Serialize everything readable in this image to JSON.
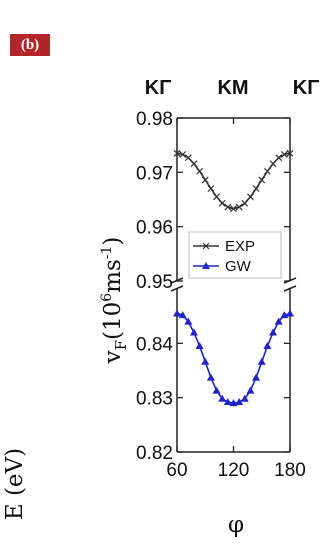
{
  "panel_label": "(b)",
  "chart_data": {
    "type": "line",
    "x": [
      60,
      66,
      72,
      78,
      84,
      90,
      96,
      102,
      108,
      114,
      120,
      126,
      132,
      138,
      144,
      150,
      156,
      162,
      168,
      174,
      180
    ],
    "top_axis_labels": [
      "KΓ",
      "KM",
      "KΓ"
    ],
    "xticks": [
      "60",
      "120",
      "180"
    ],
    "xlabel": "φ",
    "ylabel_main": "v",
    "ylabel_sub": "F",
    "ylabel_rest": "(10",
    "ylabel_sup1": "6",
    "ylabel_unit": "ms",
    "ylabel_sup2": "-1",
    "ylabel_close": ")",
    "left_edge_label": "E (eV)",
    "upper_panel": {
      "ylim": [
        0.95,
        0.98
      ],
      "yticks": [
        "0.98",
        "0.97",
        "0.96",
        "0.95"
      ]
    },
    "lower_panel": {
      "ylim": [
        0.82,
        0.85
      ],
      "yticks": [
        "0.84",
        "0.83",
        "0.82"
      ]
    },
    "series": [
      {
        "name": "EXP",
        "panel": "upper",
        "color": "#333333",
        "marker": "cross",
        "values": [
          0.9735,
          0.9733,
          0.9727,
          0.9716,
          0.9702,
          0.9686,
          0.967,
          0.9655,
          0.9643,
          0.9636,
          0.9633,
          0.9636,
          0.9643,
          0.9655,
          0.967,
          0.9686,
          0.9702,
          0.9716,
          0.9727,
          0.9733,
          0.9735
        ]
      },
      {
        "name": "GW",
        "panel": "lower",
        "color": "#1f24c8",
        "marker": "triangle",
        "values": [
          0.8455,
          0.8452,
          0.844,
          0.842,
          0.8395,
          0.8366,
          0.8337,
          0.8313,
          0.8298,
          0.8292,
          0.829,
          0.8292,
          0.8298,
          0.8313,
          0.8337,
          0.8366,
          0.8395,
          0.842,
          0.844,
          0.8452,
          0.8455
        ]
      }
    ]
  }
}
